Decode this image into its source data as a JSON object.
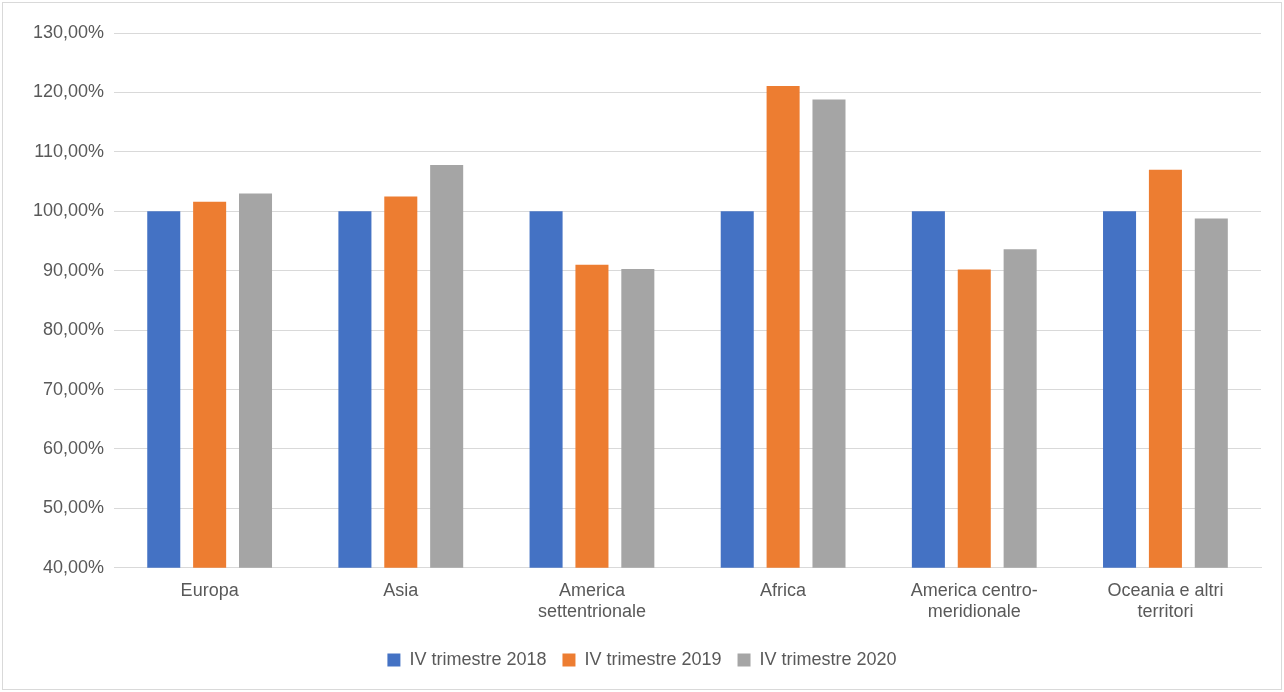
{
  "chart_data": {
    "type": "bar",
    "categories": [
      "Europa",
      "Asia",
      "America settentrionale",
      "Africa",
      "America centro-meridionale",
      "Oceania e altri territori"
    ],
    "series": [
      {
        "name": "IV trimestre 2018",
        "color": "#4472c4",
        "values": [
          100,
          100,
          100,
          100,
          100,
          100
        ]
      },
      {
        "name": "IV trimestre 2019",
        "color": "#ed7d31",
        "values": [
          101.6,
          102.5,
          91.0,
          121.1,
          90.2,
          107.0
        ]
      },
      {
        "name": "IV trimestre 2020",
        "color": "#a5a5a5",
        "values": [
          103.0,
          107.8,
          90.3,
          118.8,
          93.6,
          98.8
        ]
      }
    ],
    "ylim": [
      40,
      130
    ],
    "yticks": [
      {
        "value": 40,
        "label": "40,00%"
      },
      {
        "value": 50,
        "label": "50,00%"
      },
      {
        "value": 60,
        "label": "60,00%"
      },
      {
        "value": 70,
        "label": "70,00%"
      },
      {
        "value": 80,
        "label": "80,00%"
      },
      {
        "value": 90,
        "label": "90,00%"
      },
      {
        "value": 100,
        "label": "100,00%"
      },
      {
        "value": 110,
        "label": "110,00%"
      },
      {
        "value": 120,
        "label": "120,00%"
      },
      {
        "value": 130,
        "label": "130,00%"
      }
    ],
    "grid": "y",
    "legend": "bottom"
  }
}
